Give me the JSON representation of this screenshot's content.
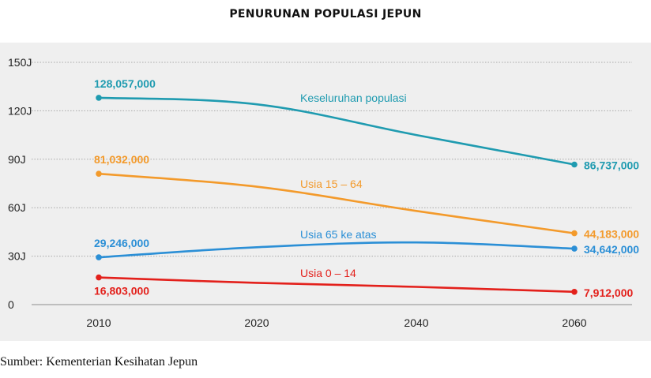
{
  "chart_title": "PENURUNAN POPULASI JEPUN",
  "source_text": "Sumber: Kementerian Kesihatan Jepun",
  "chart_data": {
    "type": "line",
    "title": "PENURUNAN POPULASI JEPUN",
    "x": [
      2010,
      2020,
      2040,
      2060
    ],
    "x_tick_labels": [
      "2010",
      "2020",
      "2040",
      "2060"
    ],
    "y_tick_labels": [
      "0",
      "30J",
      "60J",
      "90J",
      "120J",
      "150J"
    ],
    "y_tick_values": [
      0,
      30000000,
      60000000,
      90000000,
      120000000,
      150000000
    ],
    "ylim": [
      0,
      150000000
    ],
    "grid": "horizontal-dotted",
    "legend": "inline-labels",
    "series": [
      {
        "name": "Keseluruhan populasi",
        "color": "#1f9bb0",
        "values": [
          128057000,
          124000000,
          105000000,
          86737000
        ],
        "start_label": "128,057,000",
        "end_label": "86,737,000"
      },
      {
        "name": "Usia 15 – 64",
        "color": "#f39a2b",
        "values": [
          81032000,
          73000000,
          58000000,
          44183000
        ],
        "start_label": "81,032,000",
        "end_label": "44,183,000"
      },
      {
        "name": "Usia 65 ke atas",
        "color": "#2b8fd6",
        "values": [
          29246000,
          35500000,
          38500000,
          34642000
        ],
        "start_label": "29,246,000",
        "end_label": "34,642,000"
      },
      {
        "name": "Usia 0 – 14",
        "color": "#e3201b",
        "values": [
          16803000,
          13500000,
          11000000,
          7912000
        ],
        "start_label": "16,803,000",
        "end_label": "7,912,000"
      }
    ]
  }
}
